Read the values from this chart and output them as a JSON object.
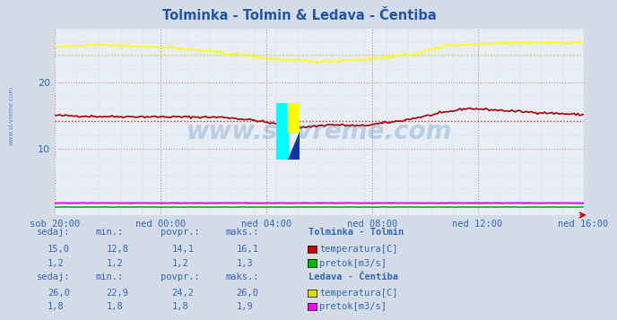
{
  "title": "Tolminka - Tolmin & Ledava - Čentiba",
  "title_color": "#2255aa",
  "bg_color": "#d4dce8",
  "plot_bg_color": "#e8eef5",
  "grid_color_major": "#cc8888",
  "grid_color_minor": "#ddcccc",
  "ylim": [
    0,
    28
  ],
  "xlabel_color": "#3366bb",
  "xtick_labels": [
    "sob 20:00",
    "ned 00:00",
    "ned 04:00",
    "ned 08:00",
    "ned 12:00",
    "ned 16:00"
  ],
  "n_points": 288,
  "tolminka_temp_avg": 14.1,
  "ledava_temp_avg": 24.2,
  "color_tolminka_temp": "#aa0000",
  "color_tolminka_pretok": "#00bb00",
  "color_ledava_temp": "#ffff00",
  "color_ledava_pretok": "#ff00ff",
  "watermark": "www.si-vreme.com",
  "watermark_color": "#1a5fa8",
  "watermark_alpha": 0.22,
  "table_label_color": "#3366bb",
  "sidebar_text": "www.si-vreme.com",
  "sidebar_color": "#3366bb",
  "table1_headers": [
    "sedaj:",
    "min.:",
    "povpr.:",
    "maks.:"
  ],
  "table1_station": "Tolminka - Tolmin",
  "table1_row1": [
    "15,0",
    "12,8",
    "14,1",
    "16,1"
  ],
  "table1_row2": [
    "1,2",
    "1,2",
    "1,2",
    "1,3"
  ],
  "table1_legend": [
    "temperatura[C]",
    "pretok[m3/s]"
  ],
  "table1_colors": [
    "#cc0000",
    "#00bb00"
  ],
  "table2_headers": [
    "sedaj:",
    "min.:",
    "povpr.:",
    "maks.:"
  ],
  "table2_station": "Ledava - Čentiba",
  "table2_row1": [
    "26,0",
    "22,9",
    "24,2",
    "26,0"
  ],
  "table2_row2": [
    "1,8",
    "1,8",
    "1,8",
    "1,9"
  ],
  "table2_legend": [
    "temperatura[C]",
    "pretok[m3/s]"
  ],
  "table2_colors": [
    "#dddd00",
    "#ff00ff"
  ]
}
